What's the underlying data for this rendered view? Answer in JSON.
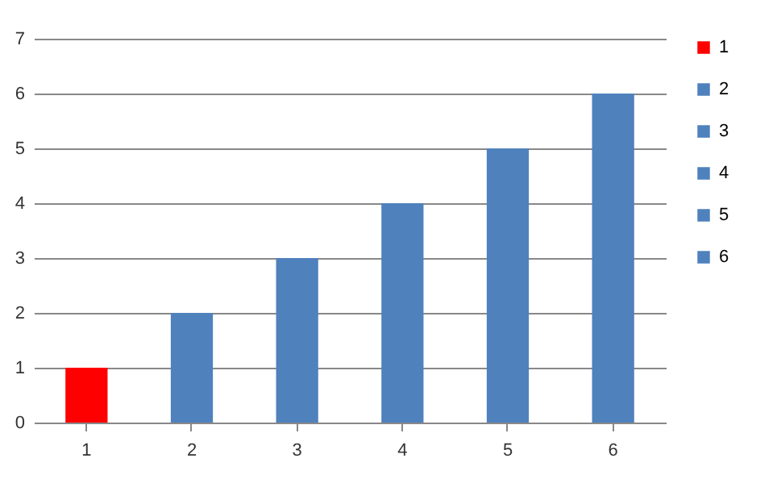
{
  "chart_data": {
    "type": "bar",
    "categories": [
      "1",
      "2",
      "3",
      "4",
      "5",
      "6"
    ],
    "series": [
      {
        "name": "1",
        "color": "#ff0000",
        "values": [
          1,
          null,
          null,
          null,
          null,
          null
        ]
      },
      {
        "name": "2",
        "color": "#4f81bd",
        "values": [
          null,
          2,
          null,
          null,
          null,
          null
        ]
      },
      {
        "name": "3",
        "color": "#4f81bd",
        "values": [
          null,
          null,
          3,
          null,
          null,
          null
        ]
      },
      {
        "name": "4",
        "color": "#4f81bd",
        "values": [
          null,
          null,
          null,
          4,
          null,
          null
        ]
      },
      {
        "name": "5",
        "color": "#4f81bd",
        "values": [
          null,
          null,
          null,
          null,
          5,
          null
        ]
      },
      {
        "name": "6",
        "color": "#4f81bd",
        "values": [
          null,
          null,
          null,
          null,
          null,
          6
        ]
      }
    ],
    "ylim": [
      0,
      7
    ],
    "yticks": [
      0,
      1,
      2,
      3,
      4,
      5,
      6,
      7
    ],
    "grid": "y",
    "legend": "right"
  }
}
